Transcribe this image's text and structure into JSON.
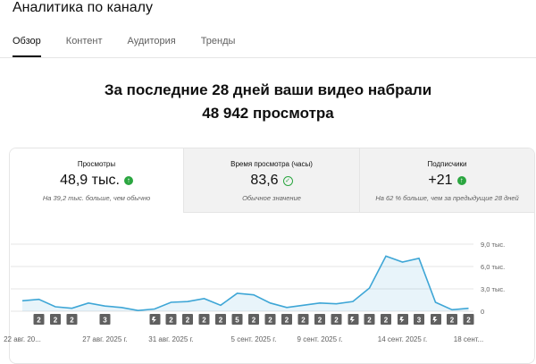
{
  "header": {
    "title": "Аналитика по каналу"
  },
  "tabs": [
    "Обзор",
    "Контент",
    "Аудитория",
    "Тренды"
  ],
  "headline": {
    "line1": "За последние 28 дней ваши видео набрали",
    "line2": "48 942 просмотра"
  },
  "metrics": [
    {
      "label": "Просмотры",
      "value": "48,9 тыс.",
      "note": "На 39,2 тыс. больше, чем обычно"
    },
    {
      "label": "Время просмотра (часы)",
      "value": "83,6",
      "note": "Обычное значение"
    },
    {
      "label": "Подписчики",
      "value": "+21",
      "note": "На 62 % больше, чем за предыдущие 28 дней"
    }
  ],
  "chart_data": {
    "type": "line",
    "categories": [
      "22 авг. 20...",
      null,
      null,
      null,
      null,
      "27 авг. 2025 г.",
      null,
      null,
      null,
      "31 авг. 2025 г.",
      null,
      null,
      null,
      null,
      "5 сент. 2025 г.",
      null,
      null,
      null,
      "9 сент. 2025 г.",
      null,
      null,
      null,
      null,
      "14 сент. 2025 г.",
      null,
      null,
      null,
      "18 сент..."
    ],
    "series": [
      {
        "color": "#3ea6d6",
        "values": [
          1400,
          1600,
          600,
          400,
          1100,
          700,
          500,
          100,
          300,
          1200,
          1300,
          1700,
          800,
          2400,
          2200,
          1100,
          500,
          800,
          1100,
          1000,
          1300,
          3100,
          7400,
          6600,
          7100,
          1200,
          200,
          400
        ]
      }
    ],
    "ylim": [
      0,
      9000
    ],
    "yticks": [
      0,
      {
        "value": 3000,
        "label": "3,0 тыс."
      },
      {
        "value": 6000,
        "label": "6,0 тыс."
      },
      {
        "value": 9000,
        "label": "9,0 тыс."
      }
    ],
    "grid": true,
    "markers": [
      null,
      "2",
      "2",
      "2",
      null,
      "3",
      null,
      null,
      null,
      "2",
      "2",
      "2",
      "2",
      "5",
      "2",
      "2",
      "2",
      "2",
      "2",
      "2",
      null,
      "2",
      "2",
      null,
      "3",
      null,
      "2",
      "2"
    ]
  }
}
